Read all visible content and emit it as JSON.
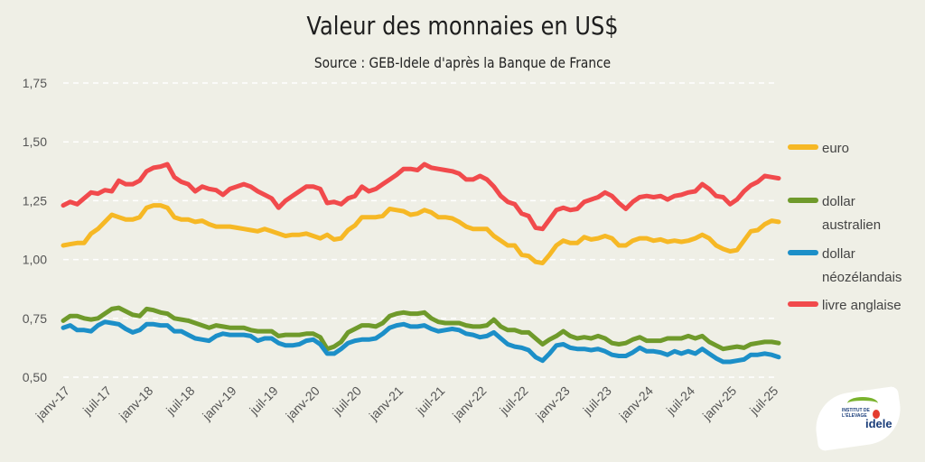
{
  "chart_data": {
    "type": "line",
    "title": "Valeur des monnaies en US$",
    "subtitle": "Source : GEB-Idele d'après la Banque de France",
    "xlabel": "",
    "ylabel": "",
    "ylim": [
      0.5,
      1.75
    ],
    "yticks": [
      "0,50",
      "0,75",
      "1,00",
      "1,25",
      "1,50",
      "1,75"
    ],
    "xticks": [
      "janv-17",
      "juil-17",
      "janv-18",
      "juil-18",
      "janv-19",
      "juil-19",
      "janv-20",
      "juil-20",
      "janv-21",
      "juil-21",
      "janv-22",
      "juil-22",
      "janv-23",
      "juil-23",
      "janv-24",
      "juil-24",
      "janv-25",
      "juil-25"
    ],
    "grid": true,
    "legend_position": "right",
    "x": [
      "janv-17",
      "févr-17",
      "mars-17",
      "avr-17",
      "mai-17",
      "juin-17",
      "juil-17",
      "août-17",
      "sept-17",
      "oct-17",
      "nov-17",
      "déc-17",
      "janv-18",
      "févr-18",
      "mars-18",
      "avr-18",
      "mai-18",
      "juin-18",
      "juil-18",
      "août-18",
      "sept-18",
      "oct-18",
      "nov-18",
      "déc-18",
      "janv-19",
      "févr-19",
      "mars-19",
      "avr-19",
      "mai-19",
      "juin-19",
      "juil-19",
      "août-19",
      "sept-19",
      "oct-19",
      "nov-19",
      "déc-19",
      "janv-20",
      "févr-20",
      "mars-20",
      "avr-20",
      "mai-20",
      "juin-20",
      "juil-20",
      "août-20",
      "sept-20",
      "oct-20",
      "nov-20",
      "déc-20",
      "janv-21",
      "févr-21",
      "mars-21",
      "avr-21",
      "mai-21",
      "juin-21",
      "juil-21",
      "août-21",
      "sept-21",
      "oct-21",
      "nov-21",
      "déc-21",
      "janv-22",
      "févr-22",
      "mars-22",
      "avr-22",
      "mai-22",
      "juin-22",
      "juil-22",
      "août-22",
      "sept-22",
      "oct-22",
      "nov-22",
      "déc-22",
      "janv-23",
      "févr-23",
      "mars-23",
      "avr-23",
      "mai-23",
      "juin-23",
      "juil-23",
      "août-23",
      "sept-23",
      "oct-23",
      "nov-23",
      "déc-23",
      "janv-24",
      "févr-24",
      "mars-24",
      "avr-24",
      "mai-24",
      "juin-24",
      "juil-24",
      "août-24",
      "sept-24",
      "oct-24",
      "nov-24",
      "déc-24",
      "janv-25",
      "févr-25",
      "mars-25",
      "avr-25",
      "mai-25",
      "juin-25",
      "juil-25",
      "août-25"
    ],
    "series": [
      {
        "name": "euro",
        "color": "#f6b825",
        "values": [
          1.06,
          1.065,
          1.07,
          1.07,
          1.11,
          1.13,
          1.16,
          1.19,
          1.18,
          1.17,
          1.17,
          1.18,
          1.22,
          1.23,
          1.23,
          1.22,
          1.18,
          1.17,
          1.17,
          1.16,
          1.165,
          1.15,
          1.14,
          1.14,
          1.14,
          1.135,
          1.13,
          1.125,
          1.12,
          1.13,
          1.12,
          1.11,
          1.1,
          1.105,
          1.105,
          1.11,
          1.1,
          1.09,
          1.105,
          1.085,
          1.09,
          1.125,
          1.145,
          1.18,
          1.18,
          1.18,
          1.185,
          1.215,
          1.21,
          1.205,
          1.19,
          1.195,
          1.21,
          1.2,
          1.18,
          1.18,
          1.175,
          1.16,
          1.14,
          1.13,
          1.13,
          1.13,
          1.1,
          1.08,
          1.06,
          1.06,
          1.02,
          1.015,
          0.99,
          0.985,
          1.02,
          1.06,
          1.08,
          1.07,
          1.07,
          1.095,
          1.085,
          1.09,
          1.1,
          1.09,
          1.06,
          1.06,
          1.08,
          1.09,
          1.09,
          1.08,
          1.085,
          1.075,
          1.08,
          1.075,
          1.08,
          1.09,
          1.105,
          1.09,
          1.06,
          1.045,
          1.035,
          1.04,
          1.08,
          1.12,
          1.125,
          1.15,
          1.165,
          1.16
        ]
      },
      {
        "name": "dollar australien",
        "color": "#6f9a2b",
        "values": [
          0.74,
          0.76,
          0.76,
          0.75,
          0.745,
          0.75,
          0.77,
          0.79,
          0.795,
          0.78,
          0.765,
          0.76,
          0.79,
          0.785,
          0.775,
          0.77,
          0.75,
          0.745,
          0.74,
          0.73,
          0.72,
          0.71,
          0.72,
          0.715,
          0.71,
          0.71,
          0.71,
          0.7,
          0.695,
          0.695,
          0.695,
          0.675,
          0.68,
          0.68,
          0.68,
          0.685,
          0.685,
          0.67,
          0.62,
          0.63,
          0.65,
          0.69,
          0.705,
          0.72,
          0.72,
          0.715,
          0.73,
          0.76,
          0.77,
          0.775,
          0.77,
          0.77,
          0.775,
          0.75,
          0.735,
          0.73,
          0.73,
          0.73,
          0.72,
          0.715,
          0.715,
          0.72,
          0.745,
          0.715,
          0.7,
          0.7,
          0.69,
          0.69,
          0.665,
          0.64,
          0.66,
          0.675,
          0.695,
          0.675,
          0.665,
          0.67,
          0.665,
          0.675,
          0.665,
          0.645,
          0.64,
          0.645,
          0.66,
          0.67,
          0.655,
          0.655,
          0.655,
          0.665,
          0.665,
          0.665,
          0.675,
          0.665,
          0.675,
          0.65,
          0.635,
          0.62,
          0.625,
          0.63,
          0.625,
          0.64,
          0.645,
          0.65,
          0.65,
          0.645
        ]
      },
      {
        "name": "dollar néozélandais",
        "color": "#1c8fc8",
        "values": [
          0.71,
          0.72,
          0.7,
          0.7,
          0.695,
          0.72,
          0.735,
          0.73,
          0.725,
          0.705,
          0.69,
          0.7,
          0.725,
          0.725,
          0.72,
          0.72,
          0.695,
          0.695,
          0.68,
          0.665,
          0.66,
          0.655,
          0.675,
          0.685,
          0.68,
          0.68,
          0.68,
          0.675,
          0.655,
          0.665,
          0.665,
          0.645,
          0.635,
          0.635,
          0.64,
          0.655,
          0.66,
          0.64,
          0.6,
          0.6,
          0.62,
          0.645,
          0.655,
          0.66,
          0.66,
          0.665,
          0.685,
          0.71,
          0.72,
          0.725,
          0.715,
          0.715,
          0.72,
          0.705,
          0.695,
          0.7,
          0.705,
          0.7,
          0.685,
          0.68,
          0.67,
          0.675,
          0.69,
          0.665,
          0.64,
          0.63,
          0.625,
          0.615,
          0.585,
          0.57,
          0.6,
          0.635,
          0.64,
          0.625,
          0.62,
          0.62,
          0.615,
          0.62,
          0.61,
          0.595,
          0.59,
          0.59,
          0.605,
          0.625,
          0.61,
          0.61,
          0.605,
          0.595,
          0.61,
          0.6,
          0.61,
          0.6,
          0.62,
          0.6,
          0.58,
          0.565,
          0.565,
          0.57,
          0.575,
          0.595,
          0.595,
          0.6,
          0.595,
          0.585
        ]
      },
      {
        "name": "livre anglaise",
        "color": "#f14a4c",
        "values": [
          1.23,
          1.245,
          1.235,
          1.26,
          1.285,
          1.28,
          1.295,
          1.29,
          1.335,
          1.32,
          1.32,
          1.335,
          1.375,
          1.39,
          1.395,
          1.405,
          1.35,
          1.33,
          1.32,
          1.29,
          1.31,
          1.3,
          1.295,
          1.275,
          1.3,
          1.31,
          1.32,
          1.31,
          1.29,
          1.275,
          1.26,
          1.22,
          1.25,
          1.27,
          1.29,
          1.31,
          1.31,
          1.3,
          1.24,
          1.245,
          1.235,
          1.26,
          1.27,
          1.31,
          1.29,
          1.3,
          1.32,
          1.34,
          1.36,
          1.385,
          1.385,
          1.38,
          1.405,
          1.39,
          1.385,
          1.38,
          1.375,
          1.365,
          1.34,
          1.34,
          1.355,
          1.34,
          1.31,
          1.27,
          1.245,
          1.235,
          1.195,
          1.185,
          1.135,
          1.13,
          1.17,
          1.21,
          1.22,
          1.21,
          1.215,
          1.245,
          1.255,
          1.265,
          1.285,
          1.27,
          1.24,
          1.215,
          1.245,
          1.265,
          1.27,
          1.265,
          1.27,
          1.255,
          1.27,
          1.275,
          1.285,
          1.29,
          1.32,
          1.3,
          1.27,
          1.265,
          1.235,
          1.255,
          1.29,
          1.315,
          1.33,
          1.355,
          1.35,
          1.345
        ]
      }
    ]
  }
}
